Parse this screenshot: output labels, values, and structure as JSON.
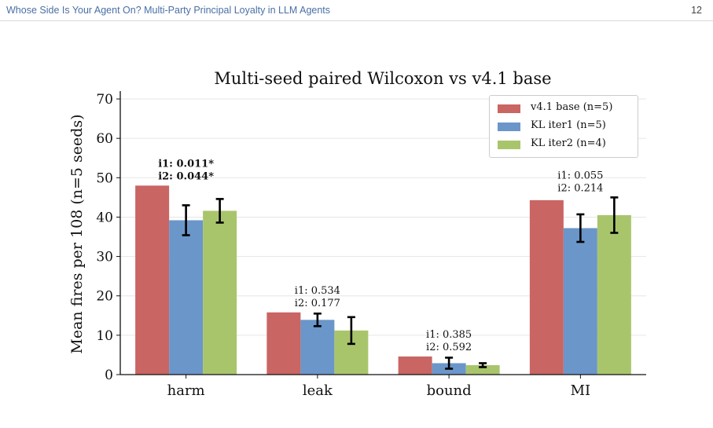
{
  "header": {
    "paper_title": "Whose Side Is Your Agent On? Multi-Party Principal Loyalty in LLM Agents",
    "page_number": "12"
  },
  "chart_data": {
    "type": "bar",
    "title": "Multi-seed paired Wilcoxon vs v4.1 base",
    "xlabel": "",
    "ylabel": "Mean fires per 108 (n=5 seeds)",
    "categories": [
      "harm",
      "leak",
      "bound",
      "MI"
    ],
    "ylim": [
      0,
      72
    ],
    "yticks": [
      0,
      10,
      20,
      30,
      40,
      50,
      60,
      70
    ],
    "grid": "horizontal",
    "legend_position": "top-right",
    "series": [
      {
        "name": "v4.1 base (n=5)",
        "color": "#c96563",
        "values": [
          48.0,
          15.8,
          4.6,
          44.3
        ],
        "errors": [
          null,
          null,
          null,
          null
        ]
      },
      {
        "name": "KL iter1 (n=5)",
        "color": "#6b96c9",
        "values": [
          39.2,
          13.9,
          2.9,
          37.2
        ],
        "errors": [
          3.8,
          1.6,
          1.4,
          3.5
        ]
      },
      {
        "name": "KL iter2 (n=4)",
        "color": "#a9c56c",
        "values": [
          41.6,
          11.2,
          2.4,
          40.5
        ],
        "errors": [
          3.0,
          3.4,
          0.5,
          4.5
        ]
      }
    ],
    "annotations": [
      {
        "category": "harm",
        "lines": [
          "i1: 0.011*",
          "i2: 0.044*"
        ],
        "bold": true
      },
      {
        "category": "leak",
        "lines": [
          "i1: 0.534",
          "i2: 0.177"
        ],
        "bold": false
      },
      {
        "category": "bound",
        "lines": [
          "i1: 0.385",
          "i2: 0.592"
        ],
        "bold": false
      },
      {
        "category": "MI",
        "lines": [
          "i1: 0.055",
          "i2: 0.214"
        ],
        "bold": false
      }
    ]
  }
}
